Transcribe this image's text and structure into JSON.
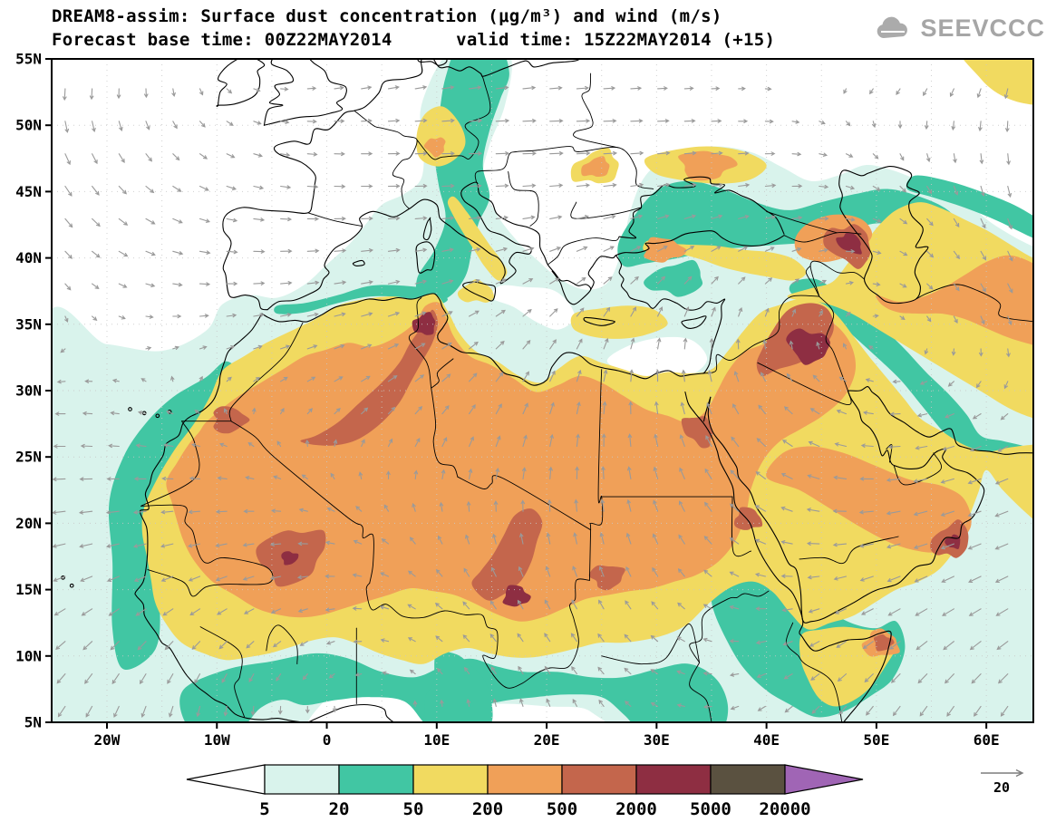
{
  "header": {
    "title_line1": "DREAM8-assim: Surface dust concentration (μg/m³) and wind (m/s)",
    "title_line2": "Forecast base time: 00Z22MAY2014      valid time: 15Z22MAY2014 (+15)",
    "logo_text": "SEEVCCC"
  },
  "axes": {
    "lat_ticks": [
      "55N",
      "50N",
      "45N",
      "40N",
      "35N",
      "30N",
      "25N",
      "20N",
      "15N",
      "10N",
      "5N"
    ],
    "lon_ticks": [
      "20W",
      "10W",
      "0",
      "10E",
      "20E",
      "30E",
      "40E",
      "50E",
      "60E"
    ]
  },
  "legend": {
    "labels": [
      "5",
      "20",
      "50",
      "200",
      "500",
      "2000",
      "5000",
      "20000"
    ],
    "colors": {
      "below5": "#ffffff",
      "c5_20": "#d9f3ec",
      "c20_50": "#41c6a3",
      "c50_200": "#f1da60",
      "c200_500": "#f0a058",
      "c500_2000": "#c4664c",
      "c2000_5000": "#8e2e42",
      "c5000_20000": "#5a5140",
      "above20000": "#a065b5"
    }
  },
  "wind_reference": {
    "value": "20"
  },
  "map_colors": {
    "coast": "#000000",
    "wind": "#9a9a9a",
    "grid": "#c8c8c8"
  }
}
